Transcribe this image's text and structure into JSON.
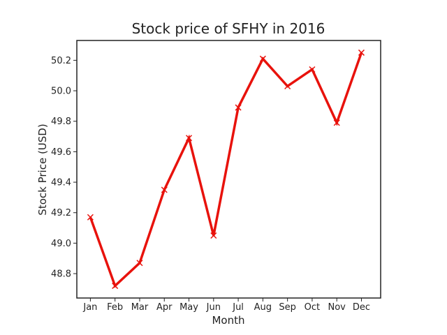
{
  "chart_data": {
    "type": "line",
    "title": "Stock price of SFHY in 2016",
    "xlabel": "Month",
    "ylabel": "Stock Price (USD)",
    "categories": [
      "Jan",
      "Feb",
      "Mar",
      "Apr",
      "May",
      "Jun",
      "Jul",
      "Aug",
      "Sep",
      "Oct",
      "Nov",
      "Dec"
    ],
    "series": [
      {
        "values": [
          49.17,
          48.72,
          48.87,
          49.35,
          49.69,
          49.05,
          49.89,
          50.21,
          50.03,
          50.14,
          49.79,
          50.25
        ],
        "color": "#e8120c",
        "marker": "x"
      }
    ],
    "ylim": [
      48.64,
      50.33
    ],
    "yticks": [
      48.8,
      49.0,
      49.2,
      49.4,
      49.6,
      49.8,
      50.0,
      50.2
    ],
    "ytick_labels": [
      "48.8",
      "49.0",
      "49.2",
      "49.4",
      "49.6",
      "49.8",
      "50.0",
      "50.2"
    ],
    "grid": false,
    "legend": false
  }
}
